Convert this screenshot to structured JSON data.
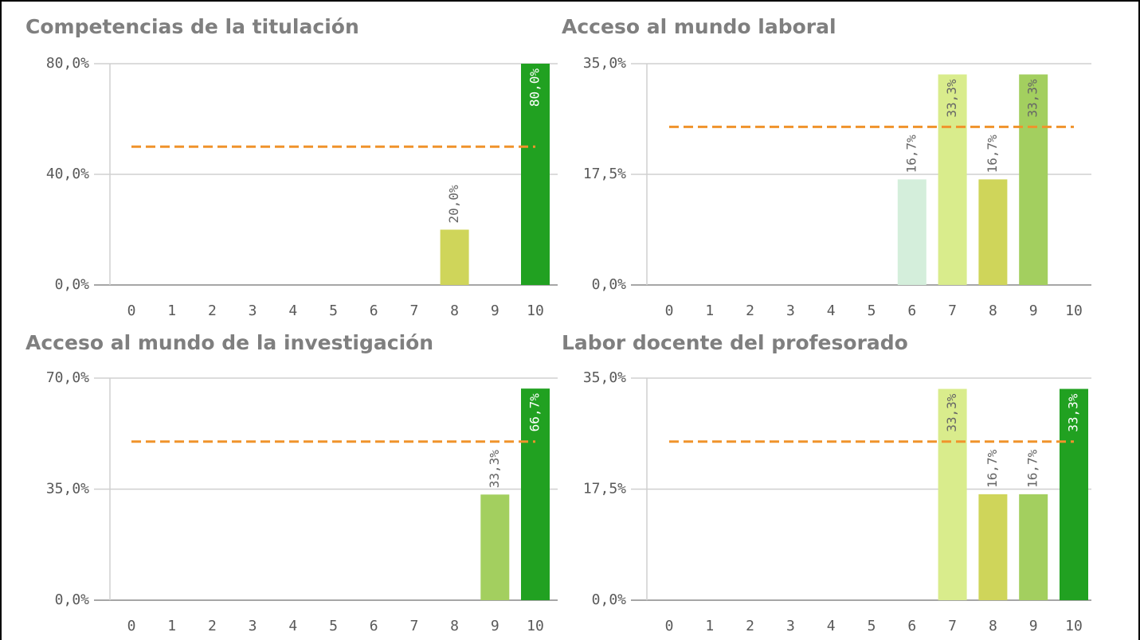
{
  "chart_data": [
    {
      "type": "bar",
      "title": "Competencias de la titulación",
      "categories": [
        "0",
        "1",
        "2",
        "3",
        "4",
        "5",
        "6",
        "7",
        "8",
        "9",
        "10"
      ],
      "values": [
        0,
        0,
        0,
        0,
        0,
        0,
        0,
        0,
        20,
        0,
        80
      ],
      "value_labels": [
        null,
        null,
        null,
        null,
        null,
        null,
        null,
        null,
        "20,0%",
        null,
        "80,0%"
      ],
      "colors": [
        null,
        null,
        null,
        null,
        null,
        null,
        null,
        null,
        "#cfd55a",
        null,
        "#21a121"
      ],
      "ylim": [
        0,
        80
      ],
      "yticks": [
        {
          "value": 0,
          "label": "0,0%"
        },
        {
          "value": 40,
          "label": "40,0%"
        },
        {
          "value": 80,
          "label": "80,0%"
        }
      ],
      "grid": true,
      "reference_line": 50,
      "reference_color": "#f0932b"
    },
    {
      "type": "bar",
      "title": "Acceso al mundo laboral",
      "categories": [
        "0",
        "1",
        "2",
        "3",
        "4",
        "5",
        "6",
        "7",
        "8",
        "9",
        "10"
      ],
      "values": [
        0,
        0,
        0,
        0,
        0,
        0,
        16.7,
        33.3,
        16.7,
        33.3,
        0
      ],
      "value_labels": [
        null,
        null,
        null,
        null,
        null,
        null,
        "16,7%",
        "33,3%",
        "16,7%",
        "33,3%",
        null
      ],
      "colors": [
        null,
        null,
        null,
        null,
        null,
        null,
        "#d4eedb",
        "#d9ec8c",
        "#cfd55a",
        "#a3cf5f",
        null
      ],
      "ylim": [
        0,
        35
      ],
      "yticks": [
        {
          "value": 0,
          "label": "0,0%"
        },
        {
          "value": 17.5,
          "label": "17,5%"
        },
        {
          "value": 35,
          "label": "35,0%"
        }
      ],
      "grid": true,
      "reference_line": 25,
      "reference_color": "#f0932b"
    },
    {
      "type": "bar",
      "title": "Acceso al mundo de la investigación",
      "categories": [
        "0",
        "1",
        "2",
        "3",
        "4",
        "5",
        "6",
        "7",
        "8",
        "9",
        "10"
      ],
      "values": [
        0,
        0,
        0,
        0,
        0,
        0,
        0,
        0,
        0,
        33.3,
        66.7
      ],
      "value_labels": [
        null,
        null,
        null,
        null,
        null,
        null,
        null,
        null,
        null,
        "33,3%",
        "66,7%"
      ],
      "colors": [
        null,
        null,
        null,
        null,
        null,
        null,
        null,
        null,
        null,
        "#a3cf5f",
        "#21a121"
      ],
      "ylim": [
        0,
        70
      ],
      "yticks": [
        {
          "value": 0,
          "label": "0,0%"
        },
        {
          "value": 35,
          "label": "35,0%"
        },
        {
          "value": 70,
          "label": "70,0%"
        }
      ],
      "grid": true,
      "reference_line": 50,
      "reference_color": "#f0932b"
    },
    {
      "type": "bar",
      "title": "Labor docente del profesorado",
      "categories": [
        "0",
        "1",
        "2",
        "3",
        "4",
        "5",
        "6",
        "7",
        "8",
        "9",
        "10"
      ],
      "values": [
        0,
        0,
        0,
        0,
        0,
        0,
        0,
        33.3,
        16.7,
        16.7,
        33.3
      ],
      "value_labels": [
        null,
        null,
        null,
        null,
        null,
        null,
        null,
        "33,3%",
        "16,7%",
        "16,7%",
        "33,3%"
      ],
      "colors": [
        null,
        null,
        null,
        null,
        null,
        null,
        null,
        "#d9ec8c",
        "#cfd55a",
        "#a3cf5f",
        "#21a121"
      ],
      "ylim": [
        0,
        35
      ],
      "yticks": [
        {
          "value": 0,
          "label": "0,0%"
        },
        {
          "value": 17.5,
          "label": "17,5%"
        },
        {
          "value": 35,
          "label": "35,0%"
        }
      ],
      "grid": true,
      "reference_line": 25,
      "reference_color": "#f0932b"
    }
  ]
}
